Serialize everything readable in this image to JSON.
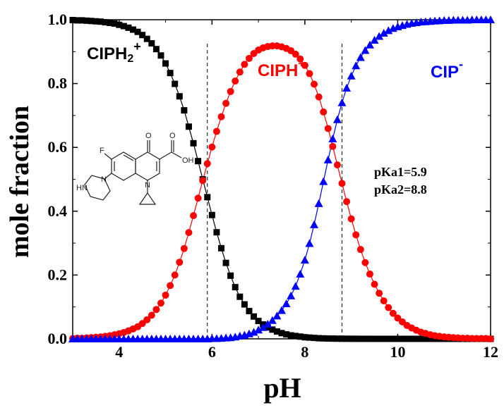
{
  "chart_data": {
    "type": "scatter",
    "xlabel": "pH",
    "ylabel": "mole fraction",
    "xlim": [
      3,
      12
    ],
    "ylim": [
      0,
      1
    ],
    "xticks": [
      "4",
      "6",
      "8",
      "10",
      "12"
    ],
    "yticks": [
      "0.0",
      "0.2",
      "0.4",
      "0.6",
      "0.8",
      "1.0"
    ],
    "pKa1": 5.9,
    "pKa2": 8.8,
    "vlines": [
      5.9,
      8.8
    ],
    "species_labels": {
      "cation": {
        "base": "CIPH",
        "sub": "2",
        "sup": "+"
      },
      "zwitterion": {
        "base": "CIPH",
        "sup": "+-"
      },
      "anion": {
        "base": "CIP",
        "sup": "-"
      }
    },
    "annotations": {
      "pka1": "pKa1=5.9",
      "pka2": "pKa2=8.8"
    },
    "structure_labels": {
      "f": "F",
      "o": "O",
      "oh": "OH",
      "n": "N",
      "hn": "HN"
    },
    "series": [
      {
        "key": "cation",
        "marker": "square",
        "color": "#000000",
        "x": [
          3.0,
          3.1,
          3.2,
          3.3,
          3.4,
          3.5,
          3.6,
          3.7,
          3.8,
          3.9,
          4.0,
          4.1,
          4.2,
          4.3,
          4.4,
          4.5,
          4.6,
          4.7,
          4.8,
          4.9,
          5.0,
          5.1,
          5.2,
          5.3,
          5.4,
          5.5,
          5.6,
          5.7,
          5.8,
          5.9,
          6.0,
          6.1,
          6.2,
          6.3,
          6.4,
          6.5,
          6.6,
          6.7,
          6.8,
          6.9,
          7.0,
          7.1,
          7.2,
          7.3,
          7.4,
          7.5,
          7.6,
          7.7,
          7.8,
          7.9,
          8.0,
          8.1,
          8.2,
          8.3,
          8.4,
          8.5,
          8.6,
          8.7,
          8.8,
          8.9,
          9.0,
          9.1,
          9.2,
          9.3,
          9.4,
          9.5,
          9.6,
          9.7,
          9.8,
          9.9,
          10.0,
          10.1,
          10.2,
          10.3,
          10.4,
          10.5,
          10.6,
          10.7,
          10.8,
          10.9,
          11.0,
          11.1,
          11.2,
          11.3,
          11.4,
          11.5,
          11.6,
          11.7,
          11.8,
          11.9,
          12.0
        ],
        "y": [
          0.999,
          0.998,
          0.998,
          0.997,
          0.996,
          0.995,
          0.994,
          0.992,
          0.99,
          0.988,
          0.984,
          0.98,
          0.975,
          0.969,
          0.962,
          0.952,
          0.94,
          0.926,
          0.908,
          0.888,
          0.863,
          0.833,
          0.799,
          0.76,
          0.716,
          0.665,
          0.613,
          0.557,
          0.5,
          0.444,
          0.388,
          0.334,
          0.284,
          0.238,
          0.198,
          0.162,
          0.132,
          0.108,
          0.087,
          0.07,
          0.056,
          0.045,
          0.036,
          0.029,
          0.023,
          0.018,
          0.014,
          0.011,
          0.009,
          0.007,
          0.005,
          0.004,
          0.003,
          0.002,
          0.0015,
          0.001,
          0.0008,
          0.0006,
          0.0004,
          0.0003,
          0.0002,
          0.0002,
          0.0001,
          0.0001,
          0.0001,
          0,
          0,
          0,
          0,
          0,
          0,
          0,
          0,
          0,
          0,
          0,
          0,
          0,
          0,
          0,
          0,
          0,
          0,
          0,
          0,
          0,
          0,
          0,
          0,
          0,
          0
        ]
      },
      {
        "key": "zwitterion",
        "marker": "circle",
        "color": "#ff0000",
        "x": [
          3.0,
          3.1,
          3.2,
          3.3,
          3.4,
          3.5,
          3.6,
          3.7,
          3.8,
          3.9,
          4.0,
          4.1,
          4.2,
          4.3,
          4.4,
          4.5,
          4.6,
          4.7,
          4.8,
          4.9,
          5.0,
          5.1,
          5.2,
          5.3,
          5.4,
          5.5,
          5.6,
          5.7,
          5.8,
          5.9,
          6.0,
          6.1,
          6.2,
          6.3,
          6.4,
          6.5,
          6.6,
          6.7,
          6.8,
          6.9,
          7.0,
          7.1,
          7.2,
          7.3,
          7.4,
          7.5,
          7.6,
          7.7,
          7.8,
          7.9,
          8.0,
          8.1,
          8.2,
          8.3,
          8.4,
          8.5,
          8.6,
          8.7,
          8.8,
          8.9,
          9.0,
          9.1,
          9.2,
          9.3,
          9.4,
          9.5,
          9.6,
          9.7,
          9.8,
          9.9,
          10.0,
          10.1,
          10.2,
          10.3,
          10.4,
          10.5,
          10.6,
          10.7,
          10.8,
          10.9,
          11.0,
          11.1,
          11.2,
          11.3,
          11.4,
          11.5,
          11.6,
          11.7,
          11.8,
          11.9,
          12.0
        ],
        "y": [
          0.001,
          0.002,
          0.002,
          0.003,
          0.004,
          0.005,
          0.006,
          0.008,
          0.01,
          0.013,
          0.016,
          0.02,
          0.025,
          0.031,
          0.038,
          0.048,
          0.06,
          0.074,
          0.092,
          0.112,
          0.137,
          0.167,
          0.2,
          0.24,
          0.283,
          0.333,
          0.386,
          0.441,
          0.496,
          0.549,
          0.601,
          0.65,
          0.696,
          0.738,
          0.775,
          0.808,
          0.836,
          0.86,
          0.879,
          0.894,
          0.905,
          0.912,
          0.916,
          0.918,
          0.918,
          0.915,
          0.91,
          0.903,
          0.892,
          0.877,
          0.857,
          0.831,
          0.798,
          0.758,
          0.711,
          0.659,
          0.603,
          0.545,
          0.487,
          0.43,
          0.376,
          0.326,
          0.28,
          0.239,
          0.203,
          0.171,
          0.143,
          0.119,
          0.098,
          0.08,
          0.065,
          0.053,
          0.042,
          0.034,
          0.027,
          0.021,
          0.017,
          0.013,
          0.01,
          0.008,
          0.006,
          0.005,
          0.004,
          0.003,
          0.002,
          0.002,
          0.001,
          0.001,
          0.001,
          0.001,
          0
        ]
      },
      {
        "key": "anion",
        "marker": "triangle",
        "color": "#0000ff",
        "x": [
          3.0,
          3.1,
          3.2,
          3.3,
          3.4,
          3.5,
          3.6,
          3.7,
          3.8,
          3.9,
          4.0,
          4.1,
          4.2,
          4.3,
          4.4,
          4.5,
          4.6,
          4.7,
          4.8,
          4.9,
          5.0,
          5.1,
          5.2,
          5.3,
          5.4,
          5.5,
          5.6,
          5.7,
          5.8,
          5.9,
          6.0,
          6.1,
          6.2,
          6.3,
          6.4,
          6.5,
          6.6,
          6.7,
          6.8,
          6.9,
          7.0,
          7.1,
          7.2,
          7.3,
          7.4,
          7.5,
          7.6,
          7.7,
          7.8,
          7.9,
          8.0,
          8.1,
          8.2,
          8.3,
          8.4,
          8.5,
          8.6,
          8.7,
          8.8,
          8.9,
          9.0,
          9.1,
          9.2,
          9.3,
          9.4,
          9.5,
          9.6,
          9.7,
          9.8,
          9.9,
          10.0,
          10.1,
          10.2,
          10.3,
          10.4,
          10.5,
          10.6,
          10.7,
          10.8,
          10.9,
          11.0,
          11.1,
          11.2,
          11.3,
          11.4,
          11.5,
          11.6,
          11.7,
          11.8,
          11.9,
          12.0
        ],
        "y": [
          0,
          0,
          0,
          0,
          0,
          0,
          0,
          0,
          0,
          0,
          0,
          0,
          0,
          0,
          0,
          0,
          0,
          0,
          0,
          0,
          0,
          0,
          0,
          0,
          0,
          0,
          0,
          0,
          0,
          0,
          0.001,
          0.001,
          0.002,
          0.003,
          0.004,
          0.006,
          0.009,
          0.012,
          0.016,
          0.021,
          0.028,
          0.036,
          0.046,
          0.058,
          0.072,
          0.089,
          0.11,
          0.135,
          0.165,
          0.203,
          0.247,
          0.299,
          0.358,
          0.424,
          0.493,
          0.561,
          0.627,
          0.687,
          0.74,
          0.786,
          0.824,
          0.856,
          0.882,
          0.904,
          0.921,
          0.936,
          0.948,
          0.958,
          0.966,
          0.973,
          0.978,
          0.982,
          0.986,
          0.989,
          0.991,
          0.993,
          0.994,
          0.995,
          0.996,
          0.997,
          0.998,
          0.998,
          0.999,
          0.999,
          0.999,
          0.999,
          1.0,
          1.0,
          1.0,
          1.0,
          1.0
        ]
      }
    ]
  }
}
